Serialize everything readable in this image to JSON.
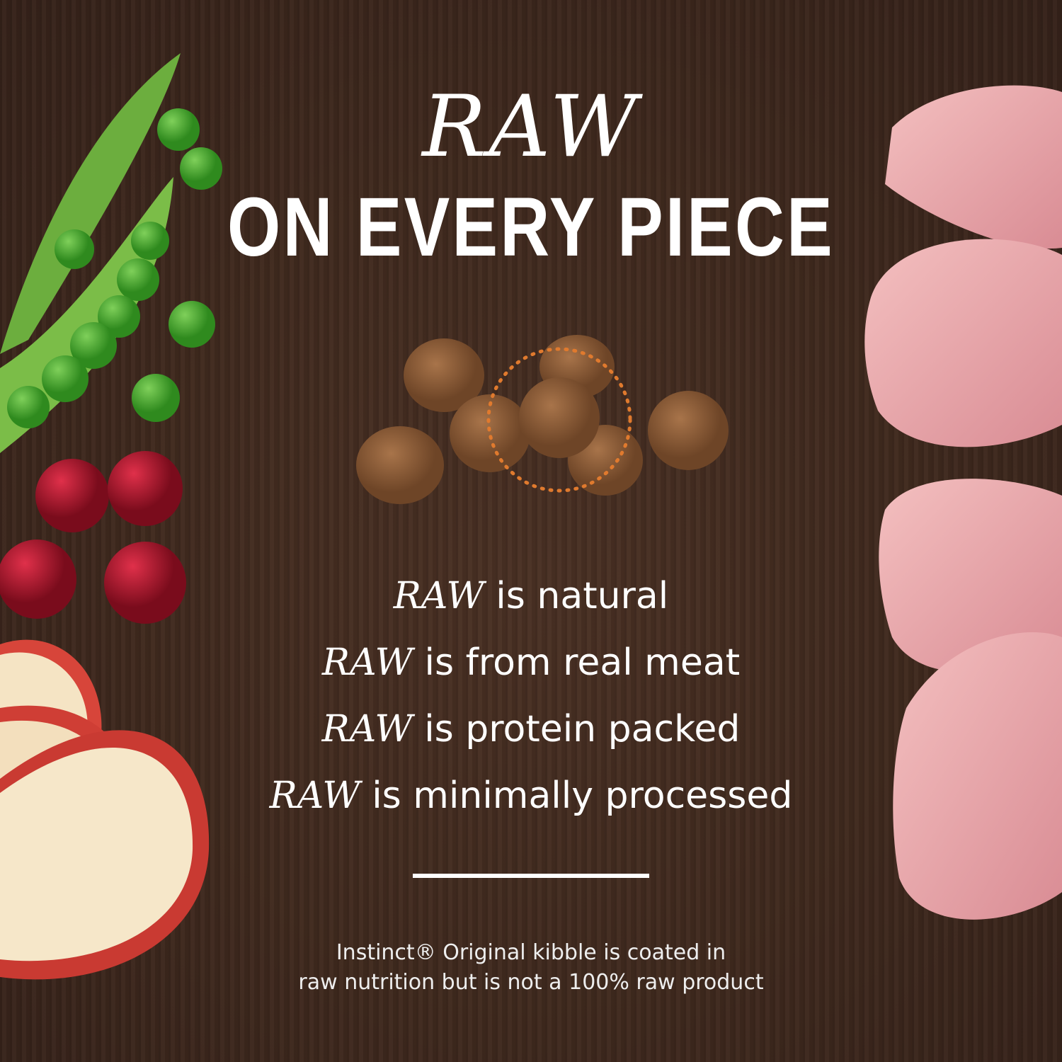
{
  "headline": {
    "script": "RAW",
    "bold": "ON EVERY PIECE"
  },
  "claims": [
    {
      "raw": "RAW",
      "text": " is natural"
    },
    {
      "raw": "RAW",
      "text": " is from real meat"
    },
    {
      "raw": "RAW",
      "text": " is protein packed"
    },
    {
      "raw": "RAW",
      "text": " is minimally processed"
    }
  ],
  "footnote": {
    "line1": "Instinct® Original kibble is coated in",
    "line2": "raw nutrition but is not a 100% raw product"
  },
  "colors": {
    "background": "#3f291e",
    "text": "#ffffff",
    "highlight_ring": "#e07a2e",
    "kibble": "#8a5a34"
  }
}
